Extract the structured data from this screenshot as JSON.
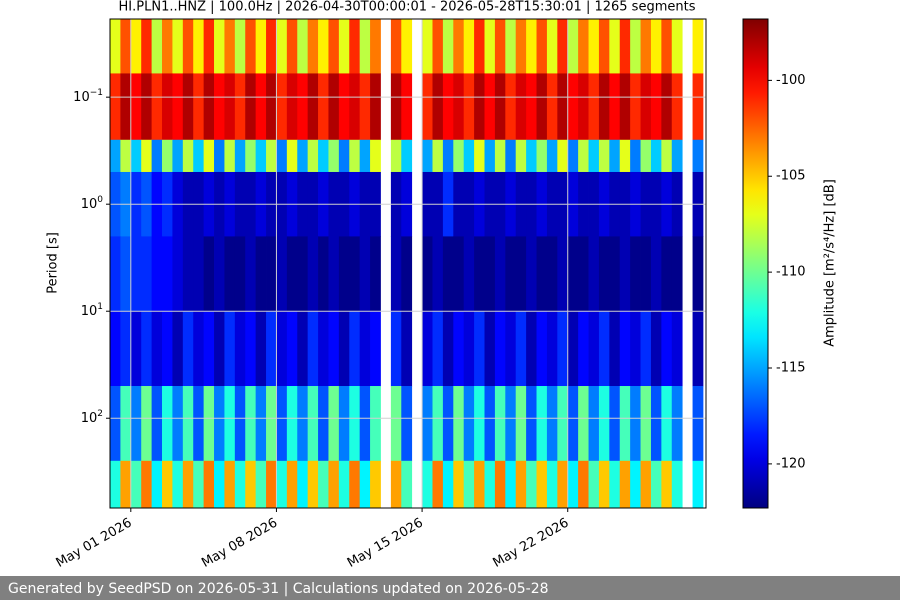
{
  "chart_data": {
    "type": "heatmap",
    "title": "HI.PLN1..HNZ | 100.0Hz | 2026-04-30T00:00:01 - 2026-05-28T15:30:01 | 1265 segments",
    "ylabel": "Period [s]",
    "clabel": "Amplitude [m²/s⁴/Hz] [dB]",
    "colormap": "jet",
    "yscale": "log",
    "grid": true,
    "x": [
      "2026-04-30T06:00",
      "2026-04-30T18:00",
      "2026-05-01T06:00",
      "2026-05-01T18:00",
      "2026-05-02T06:00",
      "2026-05-02T18:00",
      "2026-05-03T06:00",
      "2026-05-03T18:00",
      "2026-05-04T06:00",
      "2026-05-04T18:00",
      "2026-05-05T06:00",
      "2026-05-05T18:00",
      "2026-05-06T06:00",
      "2026-05-06T18:00",
      "2026-05-07T06:00",
      "2026-05-07T18:00",
      "2026-05-08T06:00",
      "2026-05-08T18:00",
      "2026-05-09T06:00",
      "2026-05-09T18:00",
      "2026-05-10T06:00",
      "2026-05-10T18:00",
      "2026-05-11T06:00",
      "2026-05-11T18:00",
      "2026-05-12T06:00",
      "2026-05-12T18:00",
      "2026-05-13T06:00",
      "2026-05-13T18:00",
      "2026-05-14T06:00",
      "2026-05-14T18:00",
      "2026-05-15T06:00",
      "2026-05-15T18:00",
      "2026-05-16T06:00",
      "2026-05-16T18:00",
      "2026-05-17T06:00",
      "2026-05-17T18:00",
      "2026-05-18T06:00",
      "2026-05-18T18:00",
      "2026-05-19T06:00",
      "2026-05-19T18:00",
      "2026-05-20T06:00",
      "2026-05-20T18:00",
      "2026-05-21T06:00",
      "2026-05-21T18:00",
      "2026-05-22T06:00",
      "2026-05-22T18:00",
      "2026-05-23T06:00",
      "2026-05-23T18:00",
      "2026-05-24T06:00",
      "2026-05-24T18:00",
      "2026-05-25T06:00",
      "2026-05-25T18:00",
      "2026-05-26T06:00",
      "2026-05-26T18:00",
      "2026-05-27T06:00",
      "2026-05-27T18:00",
      "2026-05-28T06:00"
    ],
    "xlim": [
      "2026-04-30T00:00",
      "2026-05-28T15:30"
    ],
    "xticks": [
      {
        "value": "2026-05-01T00:00",
        "label": "May 01 2026"
      },
      {
        "value": "2026-05-08T00:00",
        "label": "May 08 2026"
      },
      {
        "value": "2026-05-15T00:00",
        "label": "May 15 2026"
      },
      {
        "value": "2026-05-22T00:00",
        "label": "May 22 2026"
      }
    ],
    "y_bins": [
      0.0186,
      0.06,
      0.25,
      0.5,
      2,
      10,
      50,
      250,
      690
    ],
    "ylim": [
      690,
      0.0186
    ],
    "yticks": [
      {
        "value": 0.1,
        "label": "10^−1"
      },
      {
        "value": 1,
        "label": "10^0"
      },
      {
        "value": 10,
        "label": "10^1"
      },
      {
        "value": 100,
        "label": "10^2"
      }
    ],
    "z": [
      [
        -107,
        -102,
        -106,
        -101,
        -108,
        -103,
        -107,
        -102,
        -106,
        -101,
        -107,
        -103,
        -108,
        -102,
        -106,
        -101,
        -107,
        -102,
        -108,
        -103,
        -106,
        -102,
        -107,
        -101,
        -108,
        -103,
        null,
        -102,
        -106,
        null,
        -107,
        -102,
        -108,
        -103,
        -106,
        -101,
        -107,
        -102,
        -108,
        -103,
        -106,
        -102,
        -107,
        -101,
        -108,
        -103,
        -106,
        -102,
        -107,
        -101,
        -108,
        -103,
        -106,
        -102,
        -107,
        null,
        -106
      ],
      [
        -101,
        -98,
        -100,
        -98,
        -101,
        -99,
        -100,
        -98,
        -101,
        -98,
        -100,
        -99,
        -101,
        -98,
        -100,
        -98,
        -101,
        -99,
        -100,
        -98,
        -101,
        -98,
        -100,
        -99,
        -101,
        -98,
        null,
        -98,
        -100,
        null,
        -101,
        -98,
        -100,
        -99,
        -101,
        -98,
        -100,
        -98,
        -101,
        -99,
        -100,
        -98,
        -101,
        -98,
        -100,
        -99,
        -101,
        -98,
        -100,
        -98,
        -101,
        -99,
        -100,
        -98,
        -101,
        null,
        -101
      ],
      [
        -115,
        -108,
        -114,
        -107,
        -116,
        -109,
        -115,
        -108,
        -114,
        -107,
        -116,
        -108,
        -115,
        -109,
        -114,
        -108,
        -116,
        -107,
        -115,
        -108,
        -114,
        -109,
        -116,
        -108,
        -115,
        -107,
        null,
        -108,
        -114,
        null,
        -115,
        -108,
        -116,
        -109,
        -114,
        -107,
        -115,
        -108,
        -116,
        -108,
        -114,
        -109,
        -115,
        -107,
        -116,
        -108,
        -114,
        -108,
        -115,
        -107,
        -116,
        -109,
        -114,
        -108,
        -115,
        null,
        -116
      ],
      [
        -117,
        -116,
        -118,
        -117,
        -119,
        -118,
        -120,
        -121,
        -121,
        -120,
        -121,
        -120,
        -121,
        -121,
        -120,
        -121,
        -121,
        -120,
        -121,
        -121,
        -120,
        -121,
        -121,
        -120,
        -121,
        -121,
        null,
        -121,
        -120,
        null,
        -121,
        -121,
        -118,
        -121,
        -121,
        -120,
        -121,
        -121,
        -120,
        -121,
        -121,
        -120,
        -121,
        -121,
        -120,
        -121,
        -121,
        -120,
        -121,
        -121,
        -120,
        -121,
        -121,
        -120,
        -121,
        null,
        -121
      ],
      [
        -118,
        -117,
        -118,
        -118,
        -119,
        -119,
        -120,
        -121,
        -121,
        -122,
        -121,
        -122,
        -122,
        -121,
        -122,
        -122,
        -121,
        -122,
        -122,
        -121,
        -122,
        -121,
        -122,
        -122,
        -121,
        -122,
        null,
        -121,
        -122,
        null,
        -122,
        -121,
        -122,
        -122,
        -121,
        -122,
        -122,
        -121,
        -122,
        -122,
        -121,
        -122,
        -122,
        -121,
        -122,
        -122,
        -121,
        -122,
        -122,
        -121,
        -122,
        -122,
        -121,
        -122,
        -122,
        null,
        -122
      ],
      [
        -119,
        -118,
        -120,
        -118,
        -120,
        -119,
        -121,
        -118,
        -120,
        -119,
        -121,
        -118,
        -120,
        -119,
        -121,
        -118,
        -120,
        -119,
        -121,
        -118,
        -120,
        -119,
        -121,
        -118,
        -120,
        -119,
        null,
        -118,
        -121,
        null,
        -120,
        -118,
        -121,
        -119,
        -120,
        -118,
        -121,
        -119,
        -120,
        -118,
        -121,
        -119,
        -120,
        -118,
        -121,
        -119,
        -120,
        -118,
        -121,
        -119,
        -120,
        -118,
        -121,
        -119,
        -120,
        null,
        -121
      ],
      [
        -117,
        -111,
        -116,
        -110,
        -117,
        -112,
        -116,
        -111,
        -117,
        -110,
        -116,
        -112,
        -117,
        -111,
        -116,
        -110,
        -117,
        -112,
        -116,
        -111,
        -117,
        -110,
        -116,
        -112,
        -117,
        -111,
        null,
        -110,
        -117,
        null,
        -116,
        -111,
        -117,
        -110,
        -116,
        -112,
        -117,
        -111,
        -116,
        -110,
        -117,
        -112,
        -116,
        -111,
        -117,
        -110,
        -116,
        -112,
        -117,
        -111,
        -116,
        -110,
        -117,
        -112,
        -116,
        null,
        -117
      ],
      [
        -112,
        -104,
        -111,
        -103,
        -113,
        -105,
        -112,
        -104,
        -111,
        -103,
        -113,
        -104,
        -112,
        -105,
        -111,
        -103,
        -112,
        -104,
        -113,
        -105,
        -111,
        -104,
        -112,
        -103,
        -113,
        -105,
        null,
        -104,
        -111,
        null,
        -112,
        -103,
        -113,
        -105,
        -111,
        -104,
        -112,
        -103,
        -113,
        -104,
        -111,
        -105,
        -112,
        -104,
        -113,
        -103,
        -111,
        -105,
        -112,
        -104,
        -113,
        -104,
        -111,
        -105,
        -112,
        null,
        -113
      ]
    ],
    "clim": [
      -122.3,
      -96.8
    ],
    "cticks": [
      -120,
      -115,
      -110,
      -105,
      -100
    ]
  },
  "footer": "Generated by SeedPSD on 2026-05-31 | Calculations updated on 2026-05-28"
}
